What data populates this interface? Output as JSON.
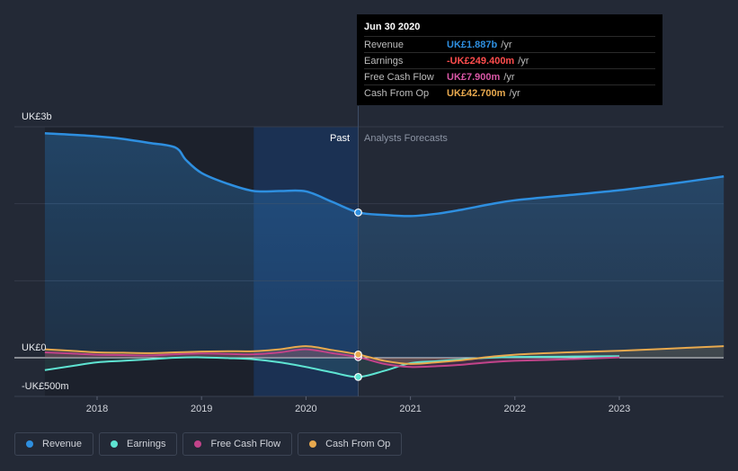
{
  "colors": {
    "revenue": "#2e8fe0",
    "earnings": "#5ee4d2",
    "fcf": "#c2438a",
    "cfo": "#e8a94e",
    "background": "#232936"
  },
  "axis": {
    "y_top_label": "UK£3b",
    "y_zero_label": "UK£0",
    "y_bottom_label": "-UK£500m",
    "x_ticks": [
      "2018",
      "2019",
      "2020",
      "2021",
      "2022",
      "2023"
    ]
  },
  "markers": {
    "past": "Past",
    "forecast": "Analysts Forecasts"
  },
  "tooltip": {
    "date": "Jun 30 2020",
    "rows": [
      {
        "label": "Revenue",
        "value": "UK£1.887b",
        "unit": "/yr",
        "color": "#2e8fe0"
      },
      {
        "label": "Earnings",
        "value": "-UK£249.400m",
        "unit": "/yr",
        "color": "#ff4d4d"
      },
      {
        "label": "Free Cash Flow",
        "value": "UK£7.900m",
        "unit": "/yr",
        "color": "#d957a6"
      },
      {
        "label": "Cash From Op",
        "value": "UK£42.700m",
        "unit": "/yr",
        "color": "#e8a94e"
      }
    ]
  },
  "legend": [
    {
      "label": "Revenue",
      "color": "#2e8fe0"
    },
    {
      "label": "Earnings",
      "color": "#5ee4d2"
    },
    {
      "label": "Free Cash Flow",
      "color": "#c2438a"
    },
    {
      "label": "Cash From Op",
      "color": "#e8a94e"
    }
  ],
  "chart_data": {
    "type": "line",
    "xlim": [
      2017.5,
      2024.0
    ],
    "ylim": [
      -500,
      3000
    ],
    "ylabel_units": "UK£ millions",
    "past_end": 2020.5,
    "highlight_start": 2019.5,
    "series": [
      {
        "name": "Revenue",
        "key": "revenue",
        "x": [
          2017.5,
          2017.9,
          2018.2,
          2018.5,
          2018.75,
          2018.85,
          2019.0,
          2019.25,
          2019.5,
          2019.75,
          2020.0,
          2020.25,
          2020.5,
          2020.75,
          2021.0,
          2021.25,
          2021.5,
          2021.75,
          2022.0,
          2022.5,
          2023.0,
          2023.5,
          2024.0
        ],
        "y": [
          2915,
          2885,
          2850,
          2790,
          2730,
          2570,
          2400,
          2260,
          2165,
          2165,
          2160,
          2025,
          1887,
          1855,
          1840,
          1870,
          1925,
          1990,
          2045,
          2110,
          2175,
          2260,
          2355
        ]
      },
      {
        "name": "Earnings",
        "key": "earnings",
        "x": [
          2017.5,
          2017.75,
          2018.0,
          2018.25,
          2018.5,
          2018.75,
          2019.0,
          2019.25,
          2019.5,
          2019.75,
          2020.0,
          2020.25,
          2020.5,
          2020.75,
          2021.0,
          2021.25,
          2021.5,
          2021.75,
          2022.0,
          2022.5,
          2023.0
        ],
        "y": [
          -160,
          -110,
          -60,
          -40,
          -20,
          0,
          5,
          -5,
          -20,
          -60,
          -120,
          -190,
          -249.4,
          -170,
          -70,
          -45,
          -20,
          0,
          10,
          15,
          20
        ]
      },
      {
        "name": "Free Cash Flow",
        "key": "fcf",
        "x": [
          2017.5,
          2017.75,
          2018.0,
          2018.25,
          2018.5,
          2018.75,
          2019.0,
          2019.25,
          2019.5,
          2019.75,
          2020.0,
          2020.25,
          2020.5,
          2020.75,
          2021.0,
          2021.25,
          2021.5,
          2021.75,
          2022.0,
          2022.5,
          2023.0
        ],
        "y": [
          70,
          55,
          40,
          35,
          30,
          45,
          55,
          50,
          45,
          70,
          110,
          60,
          7.9,
          -80,
          -120,
          -110,
          -90,
          -60,
          -40,
          -20,
          5
        ]
      },
      {
        "name": "Cash From Op",
        "key": "cfo",
        "x": [
          2017.5,
          2017.75,
          2018.0,
          2018.25,
          2018.5,
          2018.75,
          2019.0,
          2019.25,
          2019.5,
          2019.75,
          2020.0,
          2020.25,
          2020.5,
          2020.75,
          2021.0,
          2021.25,
          2021.5,
          2021.75,
          2022.0,
          2022.5,
          2023.0,
          2023.5,
          2024.0
        ],
        "y": [
          110,
          90,
          70,
          65,
          60,
          70,
          80,
          85,
          85,
          110,
          150,
          100,
          42.7,
          -40,
          -80,
          -60,
          -30,
          10,
          40,
          70,
          90,
          120,
          150
        ]
      }
    ]
  }
}
